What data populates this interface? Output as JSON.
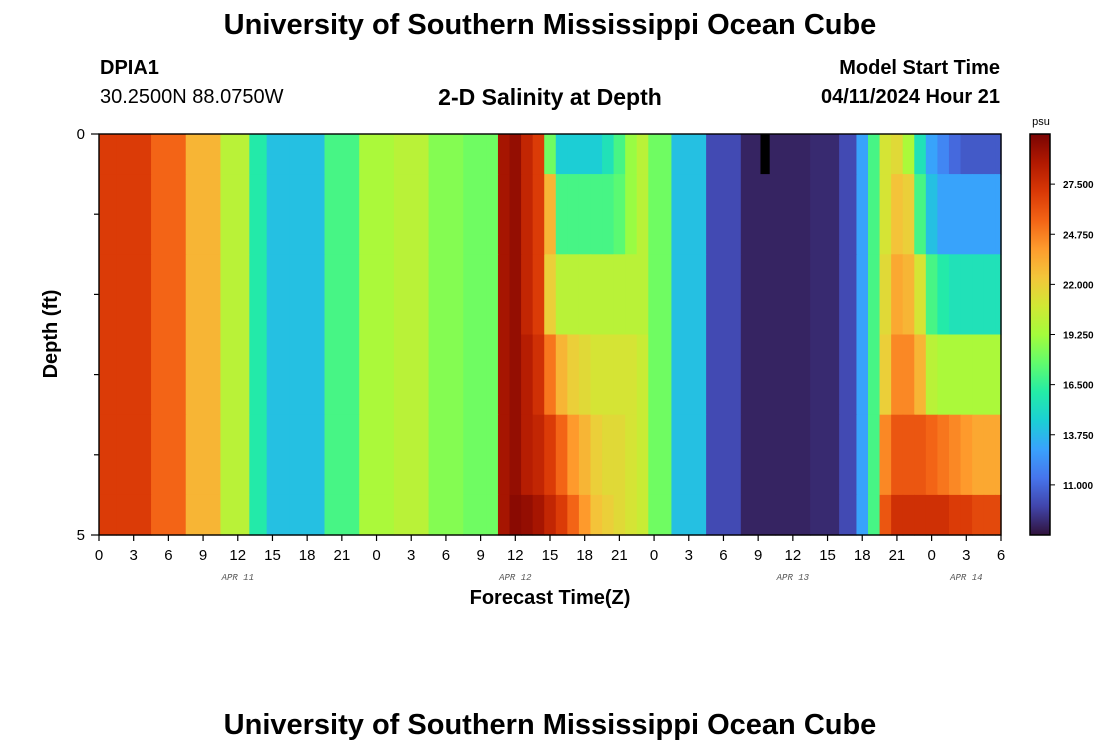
{
  "header": {
    "title": "University of Southern Mississippi Ocean Cube",
    "station": "DPIA1",
    "coords": "30.2500N  88.0750W",
    "plot_title": "2-D Salinity at Depth",
    "start_label": "Model Start Time",
    "start_value": "04/11/2024 Hour 21"
  },
  "footer": {
    "title": "University of Southern Mississippi Ocean Cube"
  },
  "chart_data": {
    "type": "heatmap",
    "title": "2-D Salinity at Depth",
    "xlabel": "Forecast Time(Z)",
    "ylabel": "Depth (ft)",
    "ylim": [
      0,
      5
    ],
    "y_tick_labels": [
      "0",
      "5"
    ],
    "x_tick_labels": [
      "0",
      "3",
      "6",
      "9",
      "12",
      "15",
      "18",
      "21",
      "0",
      "3",
      "6",
      "9",
      "12",
      "15",
      "18",
      "21",
      "0",
      "3",
      "6",
      "9",
      "12",
      "15",
      "18",
      "21",
      "0",
      "3",
      "6"
    ],
    "day_labels": [
      "APR 11",
      "APR 12",
      "APR 13",
      "APR 14"
    ],
    "x_range_hours": [
      0,
      78
    ],
    "depth_layer_edges_ft": [
      0,
      0.5,
      1.5,
      2.5,
      3.5,
      4.5,
      5
    ],
    "colorbar": {
      "unit": "psu",
      "vmin": 8.25,
      "vmax": 30.25,
      "tick_labels": [
        "27.500",
        "24.750",
        "22.000",
        "19.250",
        "16.500",
        "13.750",
        "11.000"
      ],
      "colors": [
        "#30123b",
        "#4145ab",
        "#4675ed",
        "#39a2fc",
        "#1bcfd4",
        "#24eca6",
        "#61fc6c",
        "#a4fc3b",
        "#d1e834",
        "#f3c63a",
        "#fe9b2d",
        "#f36315",
        "#d93806",
        "#b11901",
        "#7a0403"
      ]
    },
    "no_data_hours": [
      [
        57.2,
        58.0
      ]
    ],
    "no_data_depth_ft": [
      0,
      0.5
    ],
    "x_hours": [
      0,
      3,
      6,
      9,
      12,
      14,
      15,
      18,
      21,
      24,
      27,
      30,
      33,
      34,
      35,
      36,
      37,
      38,
      39,
      40,
      41,
      42,
      43,
      44,
      45,
      46,
      47,
      48,
      51,
      54,
      57,
      60,
      63,
      65,
      66,
      67,
      68,
      69,
      70,
      71,
      72,
      73,
      74,
      75,
      76,
      77,
      78
    ],
    "salinity_psu": [
      [
        27.0,
        27.0,
        25.5,
        23.0,
        20.0,
        16.0,
        14.0,
        14.0,
        17.0,
        19.5,
        20.0,
        18.5,
        18.0,
        18.0,
        29.0,
        29.5,
        28.0,
        27.0,
        18.0,
        14.5,
        14.5,
        14.5,
        14.5,
        15.5,
        17.0,
        19.0,
        20.0,
        18.0,
        14.0,
        10.0,
        8.8,
        8.8,
        9.0,
        10.0,
        13.0,
        17.0,
        21.0,
        21.5,
        19.5,
        15.5,
        13.0,
        12.0,
        11.0,
        10.5,
        10.5,
        10.5,
        10.5
      ],
      [
        27.0,
        27.0,
        25.5,
        23.0,
        20.0,
        16.0,
        14.0,
        14.0,
        17.0,
        19.5,
        20.0,
        18.5,
        18.0,
        18.0,
        29.0,
        29.5,
        28.0,
        27.0,
        23.0,
        17.0,
        17.0,
        17.0,
        17.0,
        17.0,
        17.5,
        19.0,
        20.0,
        18.0,
        14.0,
        10.0,
        8.8,
        8.8,
        9.0,
        10.0,
        13.0,
        17.0,
        21.0,
        22.5,
        22.0,
        17.0,
        14.0,
        13.0,
        13.0,
        13.0,
        13.0,
        13.0,
        13.0
      ],
      [
        27.0,
        27.0,
        25.5,
        23.0,
        20.0,
        16.0,
        14.0,
        14.0,
        17.0,
        19.5,
        20.0,
        18.5,
        18.0,
        18.0,
        29.0,
        29.5,
        28.0,
        27.0,
        22.0,
        20.0,
        20.0,
        20.0,
        20.0,
        20.0,
        20.0,
        20.0,
        20.0,
        18.0,
        14.0,
        10.0,
        8.8,
        8.8,
        9.0,
        10.0,
        13.0,
        17.0,
        21.5,
        23.5,
        23.0,
        21.0,
        17.0,
        16.0,
        15.5,
        15.5,
        15.5,
        15.5,
        15.5
      ],
      [
        27.0,
        27.0,
        25.5,
        23.0,
        20.0,
        16.0,
        14.0,
        14.0,
        17.0,
        19.5,
        20.0,
        18.5,
        18.0,
        18.0,
        29.0,
        29.5,
        28.5,
        27.5,
        25.0,
        23.0,
        22.0,
        21.5,
        21.0,
        21.0,
        21.0,
        21.0,
        20.5,
        18.0,
        14.0,
        10.0,
        8.8,
        8.8,
        9.0,
        10.0,
        13.0,
        17.0,
        22.0,
        24.5,
        24.5,
        23.0,
        20.0,
        19.5,
        19.5,
        19.5,
        19.5,
        19.5,
        19.5
      ],
      [
        27.0,
        27.0,
        25.5,
        23.0,
        20.0,
        16.0,
        14.0,
        14.0,
        17.0,
        19.5,
        20.0,
        18.5,
        18.0,
        18.0,
        29.0,
        29.5,
        28.5,
        28.0,
        27.0,
        25.5,
        24.0,
        23.0,
        22.0,
        21.5,
        21.5,
        21.0,
        20.5,
        18.0,
        14.0,
        10.0,
        8.8,
        8.8,
        9.0,
        10.0,
        13.0,
        17.0,
        24.5,
        26.0,
        26.0,
        26.0,
        25.5,
        25.0,
        24.5,
        24.0,
        23.5,
        23.5,
        23.5
      ],
      [
        27.0,
        27.0,
        25.5,
        23.0,
        20.0,
        16.0,
        14.0,
        14.0,
        17.0,
        19.5,
        20.0,
        18.5,
        18.0,
        18.0,
        29.0,
        29.8,
        29.5,
        29.0,
        28.0,
        27.0,
        25.5,
        24.0,
        22.5,
        22.0,
        21.5,
        21.0,
        20.5,
        18.0,
        14.0,
        10.0,
        8.8,
        8.8,
        9.0,
        10.0,
        13.0,
        17.0,
        26.0,
        27.5,
        27.5,
        27.5,
        27.5,
        27.5,
        27.0,
        27.0,
        26.5,
        26.5,
        26.5
      ]
    ]
  }
}
